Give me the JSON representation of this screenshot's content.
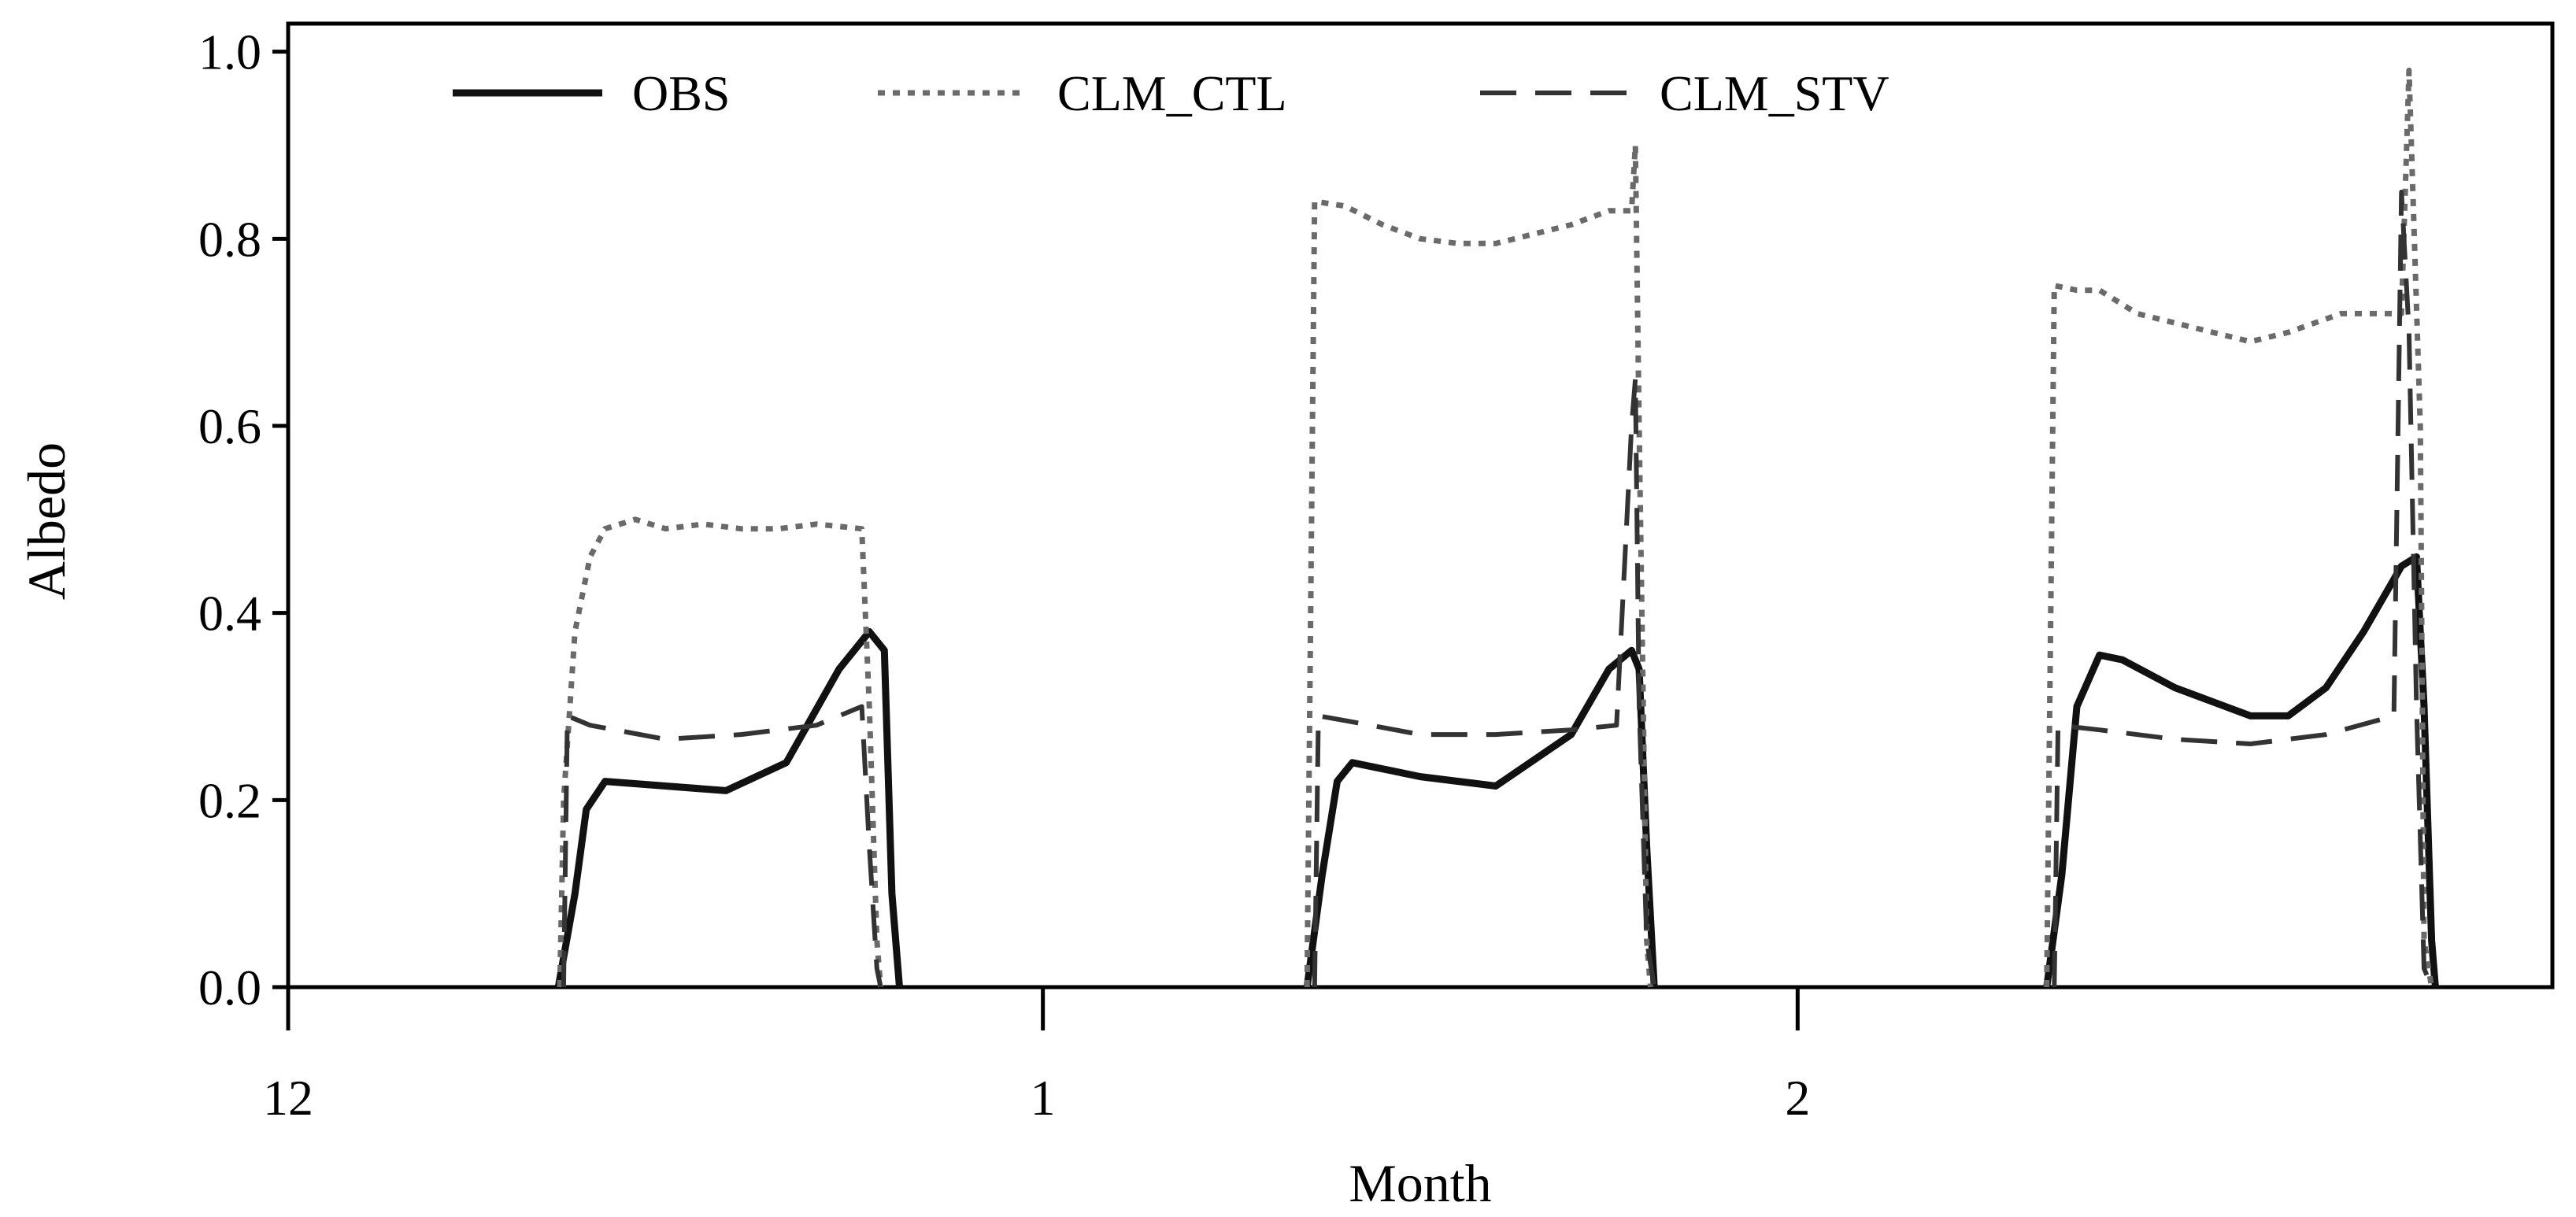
{
  "chart_data": {
    "type": "line",
    "xlabel": "Month",
    "ylabel": "Albedo",
    "xlim": [
      12,
      15
    ],
    "ylim": [
      0,
      1.03
    ],
    "x_ticks": [
      12,
      13,
      14
    ],
    "x_tick_labels": [
      "12",
      "1",
      "2"
    ],
    "y_ticks": [
      0.0,
      0.2,
      0.4,
      0.6,
      0.8,
      1.0
    ],
    "y_tick_labels": [
      "0.0",
      "0.2",
      "0.4",
      "0.6",
      "0.8",
      "1.0"
    ],
    "grid": false,
    "legend_position": "top",
    "series": [
      {
        "name": "OBS",
        "style": "solid",
        "color": "#111111",
        "x": [
          12.358,
          12.38,
          12.395,
          12.42,
          12.5,
          12.58,
          12.66,
          12.73,
          12.77,
          12.785,
          12.79,
          12.8,
          12.81,
          12.815,
          12.82,
          13.35,
          13.37,
          13.39,
          13.41,
          13.5,
          13.6,
          13.7,
          13.75,
          13.78,
          13.79,
          13.8,
          13.81,
          13.815,
          13.82,
          14.33,
          14.35,
          14.37,
          14.4,
          14.43,
          14.5,
          14.6,
          14.65,
          14.7,
          14.75,
          14.8,
          14.82,
          14.83,
          14.84,
          14.845,
          14.85
        ],
        "y": [
          0.0,
          0.1,
          0.19,
          0.22,
          0.215,
          0.21,
          0.24,
          0.34,
          0.38,
          0.365,
          0.36,
          0.1,
          0.0,
          null,
          null,
          0.0,
          0.12,
          0.22,
          0.24,
          0.225,
          0.215,
          0.27,
          0.34,
          0.36,
          0.34,
          0.15,
          0.0,
          null,
          null,
          0.0,
          0.12,
          0.3,
          0.355,
          0.35,
          0.32,
          0.29,
          0.29,
          0.32,
          0.38,
          0.45,
          0.46,
          0.3,
          0.05,
          0.0,
          null
        ]
      },
      {
        "name": "CLM_CTL",
        "style": "dotted",
        "color": "#6a6a6a",
        "x": [
          12.36,
          12.365,
          12.38,
          12.4,
          12.42,
          12.46,
          12.5,
          12.55,
          12.6,
          12.65,
          12.7,
          12.76,
          12.77,
          12.78,
          12.785,
          13.35,
          13.36,
          13.4,
          13.45,
          13.5,
          13.55,
          13.6,
          13.65,
          13.7,
          13.75,
          13.78,
          13.785,
          13.79,
          13.8,
          13.805,
          14.33,
          14.34,
          14.37,
          14.4,
          14.45,
          14.5,
          14.55,
          14.6,
          14.65,
          14.72,
          14.8,
          14.81,
          14.825,
          14.83,
          14.84
        ],
        "y": [
          0.0,
          0.2,
          0.38,
          0.46,
          0.49,
          0.5,
          0.49,
          0.495,
          0.49,
          0.49,
          0.495,
          0.49,
          0.3,
          0.05,
          0.0,
          0.0,
          0.84,
          0.835,
          0.815,
          0.8,
          0.795,
          0.795,
          0.805,
          0.815,
          0.83,
          0.83,
          0.9,
          0.6,
          0.05,
          0.0,
          0.0,
          0.75,
          0.745,
          0.745,
          0.72,
          0.71,
          0.7,
          0.69,
          0.7,
          0.72,
          0.72,
          0.98,
          0.6,
          0.05,
          0.0
        ]
      },
      {
        "name": "CLM_STV",
        "style": "dashed",
        "color": "#333333",
        "x": [
          12.365,
          12.37,
          12.4,
          12.5,
          12.6,
          12.7,
          12.76,
          12.77,
          12.78,
          12.785,
          13.36,
          13.365,
          13.4,
          13.5,
          13.6,
          13.7,
          13.76,
          13.78,
          13.785,
          13.79,
          13.8,
          13.81,
          14.34,
          14.345,
          14.4,
          14.5,
          14.6,
          14.7,
          14.79,
          14.8,
          14.81,
          14.82,
          14.83,
          14.84
        ],
        "y": [
          0.0,
          0.29,
          0.28,
          0.265,
          0.27,
          0.28,
          0.3,
          0.15,
          0.02,
          0.0,
          0.0,
          0.29,
          0.285,
          0.27,
          0.27,
          0.275,
          0.28,
          0.6,
          0.65,
          0.3,
          0.05,
          0.0,
          0.0,
          0.28,
          0.275,
          0.265,
          0.26,
          0.27,
          0.29,
          0.85,
          0.7,
          0.3,
          0.02,
          0.0
        ]
      }
    ]
  }
}
